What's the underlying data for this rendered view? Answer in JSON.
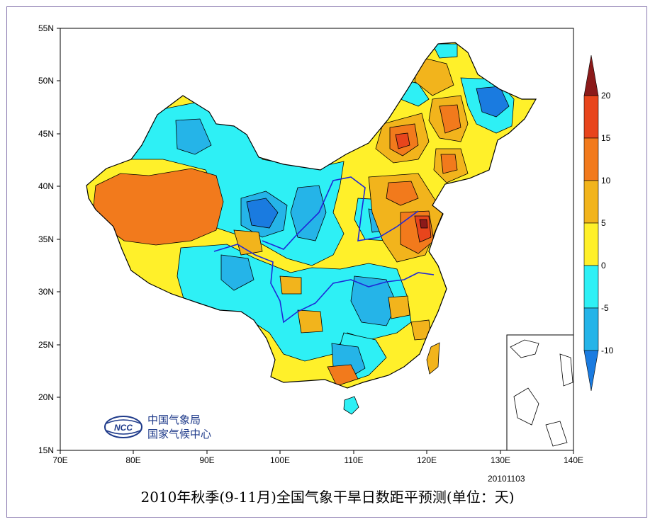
{
  "title": "2010年秋季(9-11月)全国气象干旱日数距平预测(单位：天)",
  "issue_date": "20101103",
  "organization": {
    "logo_text": "NCC",
    "line1": "中国气象局",
    "line2": "国家气候中心"
  },
  "axes": {
    "longitude_labels": [
      "70E",
      "80E",
      "90E",
      "100E",
      "110E",
      "120E",
      "130E",
      "140E"
    ],
    "latitude_labels": [
      "55N",
      "50N",
      "45N",
      "40N",
      "35N",
      "30N",
      "25N",
      "20N",
      "15N"
    ]
  },
  "colorbar": {
    "labels": [
      "20",
      "15",
      "10",
      "5",
      "0",
      "-5",
      "-10"
    ],
    "colors": {
      "gt20": "#8b1a1a",
      "15_20": "#e8451c",
      "10_15": "#f27a1c",
      "5_10": "#f2b41c",
      "0_5": "#fff02a",
      "m5_0": "#2ef0f5",
      "m10_m5": "#25b4e8",
      "lt_m10": "#1a7be0"
    }
  }
}
